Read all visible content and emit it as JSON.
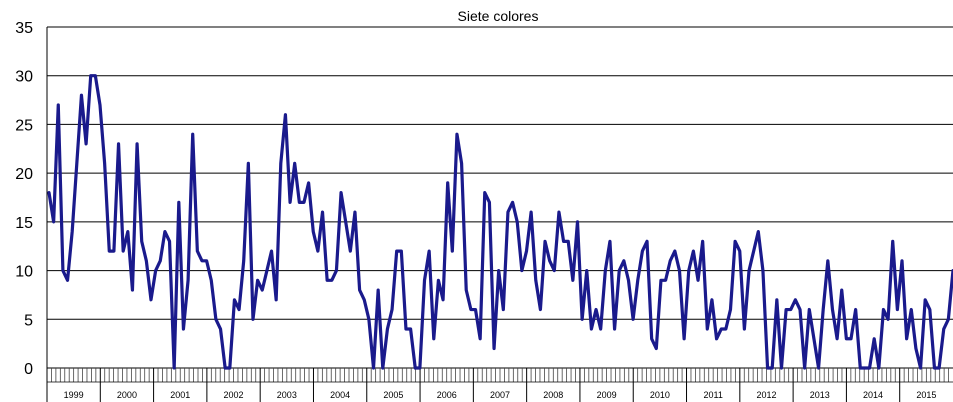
{
  "chart_data": {
    "type": "line",
    "title": "Siete colores",
    "xlabel": "",
    "ylabel": "",
    "ylim": [
      0,
      35
    ],
    "yticks": [
      0,
      5,
      10,
      15,
      20,
      25,
      30,
      35
    ],
    "grid": "horizontal",
    "line_color": "#1a1a8c",
    "years": [
      "1999",
      "2000",
      "2001",
      "2002",
      "2003",
      "2004",
      "2005",
      "2006",
      "2007",
      "2008",
      "2009",
      "2010",
      "2011",
      "2012",
      "2013",
      "2014",
      "2015"
    ],
    "series": [
      {
        "values": [
          18,
          15,
          27,
          10,
          9,
          14,
          21,
          28,
          23,
          30,
          30,
          27,
          21,
          12,
          12,
          23,
          12,
          14,
          8,
          23,
          13,
          11,
          7,
          10,
          11,
          14,
          13,
          0,
          17,
          4,
          9,
          24,
          12,
          11,
          11,
          9,
          5,
          4,
          0,
          0,
          7,
          6,
          11,
          21,
          5,
          9,
          8,
          10,
          12,
          7,
          21,
          26,
          17,
          21,
          17,
          17,
          19,
          14,
          12,
          16,
          9,
          9,
          10,
          18,
          15,
          12,
          16,
          8,
          7,
          5,
          0,
          8,
          0,
          4,
          6,
          12,
          12,
          4,
          4,
          0,
          0,
          9,
          12,
          3,
          9,
          7,
          19,
          12,
          24,
          21,
          8,
          6,
          6,
          3,
          18,
          17,
          2,
          10,
          6,
          16,
          17,
          15,
          10,
          12,
          16,
          9,
          6,
          13,
          11,
          10,
          16,
          13,
          13,
          9,
          15,
          5,
          10,
          4,
          6,
          4,
          10,
          13,
          4,
          10,
          11,
          9,
          5,
          9,
          12,
          13,
          3,
          2,
          9,
          9,
          11,
          12,
          10,
          3,
          10,
          12,
          9,
          13,
          4,
          7,
          3,
          4,
          4,
          6,
          13,
          12,
          4,
          10,
          12,
          14,
          10,
          0,
          0,
          7,
          0,
          6,
          6,
          7,
          6,
          0,
          6,
          3,
          0,
          6,
          11,
          6,
          3,
          8,
          3,
          3,
          6,
          0,
          0,
          0,
          3,
          0,
          6,
          5,
          13,
          6,
          11,
          3,
          6,
          2,
          0,
          7,
          6,
          0,
          0,
          4,
          5,
          10
        ]
      }
    ]
  }
}
